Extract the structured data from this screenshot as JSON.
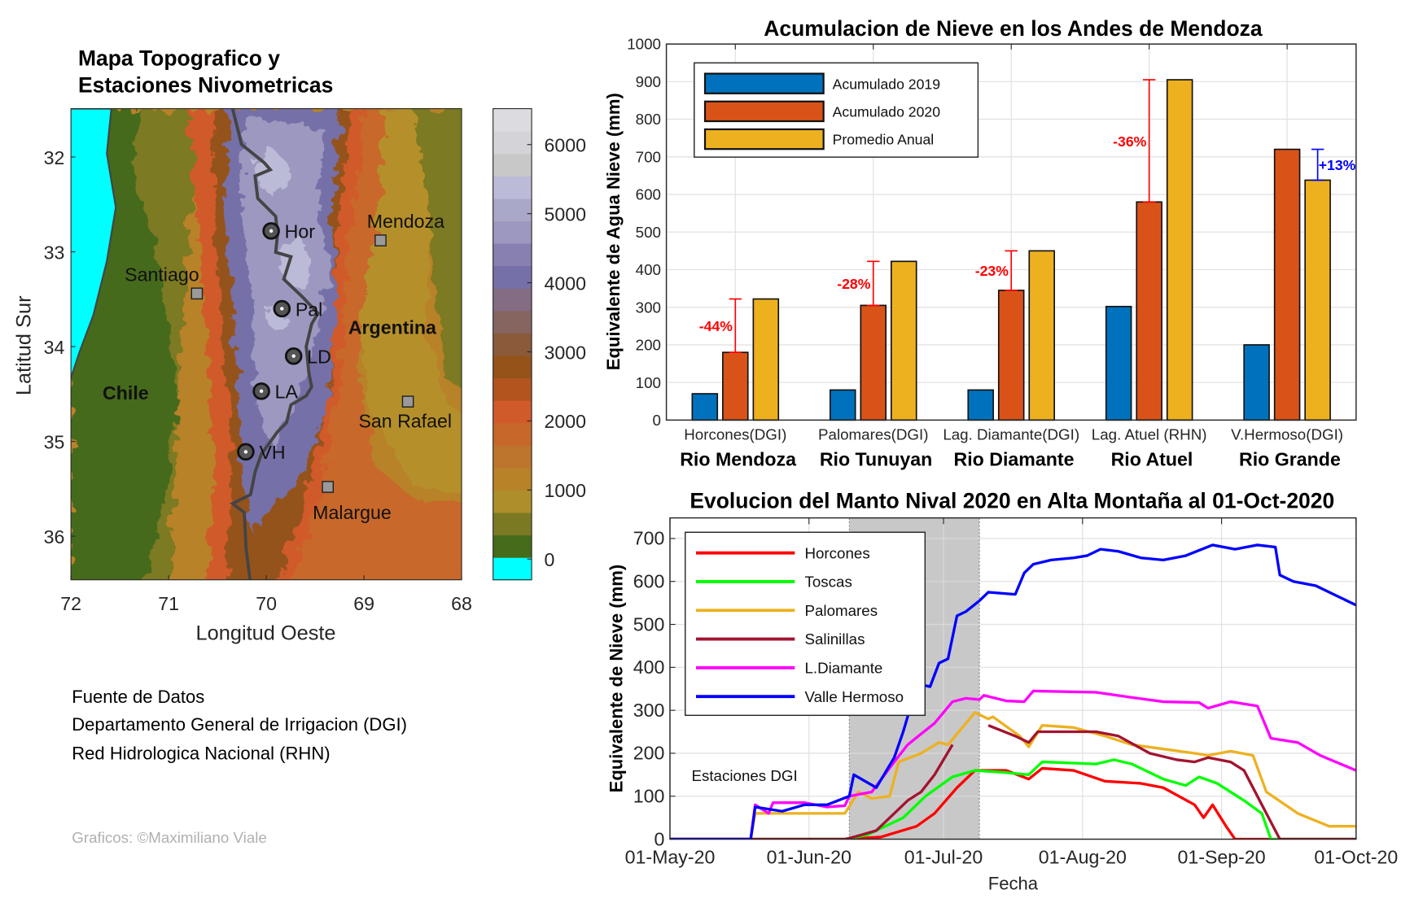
{
  "map": {
    "title_line1": "Mapa Topografico y",
    "title_line2": "Estaciones Nivometricas",
    "xlabel": "Longitud Oeste",
    "ylabel": "Latitud Sur",
    "xticks": [
      "72",
      "71",
      "70",
      "69",
      "68"
    ],
    "yticks": [
      "32",
      "33",
      "34",
      "35",
      "36"
    ],
    "lon_range": [
      72,
      68
    ],
    "lat_range": [
      31.49,
      36.46
    ],
    "ocean_color": "#00ffff",
    "border_color": "#444444",
    "stations": [
      {
        "label": "Hor",
        "lon": 69.95,
        "lat": 32.78
      },
      {
        "label": "Pal",
        "lon": 69.84,
        "lat": 33.6
      },
      {
        "label": "LD",
        "lon": 69.72,
        "lat": 34.1
      },
      {
        "label": "LA",
        "lon": 70.05,
        "lat": 34.47
      },
      {
        "label": "VH",
        "lon": 70.21,
        "lat": 35.11
      }
    ],
    "cities": [
      {
        "label": "Mendoza",
        "lon": 68.83,
        "lat": 32.88
      },
      {
        "label": "Santiago",
        "lon": 70.71,
        "lat": 33.44
      },
      {
        "label": "San Rafael",
        "lon": 68.55,
        "lat": 34.58
      },
      {
        "label": "Malargue",
        "lon": 69.37,
        "lat": 35.48
      }
    ],
    "countries": [
      {
        "label": "Chile",
        "lon": 71.44,
        "lat": 34.49
      },
      {
        "label": "Argentina",
        "lon": 68.71,
        "lat": 33.8
      }
    ]
  },
  "colorbar": {
    "ticks": [
      "0",
      "1000",
      "2000",
      "3000",
      "4000",
      "5000",
      "6000"
    ],
    "range": [
      -300,
      6520
    ],
    "colors": [
      "#00ffff",
      "#456b1b",
      "#7b7a22",
      "#ad8e2a",
      "#b88228",
      "#bd742c",
      "#c8672a",
      "#d05a2a",
      "#b3541f",
      "#95531a",
      "#8a5a3a",
      "#866460",
      "#846c84",
      "#7670a8",
      "#8880b0",
      "#9c98c0",
      "#aaa8c8",
      "#bbbbd8",
      "#c8c8c8",
      "#d4d4d8",
      "#dcdce0"
    ]
  },
  "sources": {
    "lines": [
      "Fuente de Datos",
      "Departamento General de Irrigacion (DGI)",
      "Red Hidrologica Nacional (RHN)"
    ],
    "credit": "Graficos: ©Maximiliano Viale"
  },
  "chart_data": [
    {
      "type": "bar",
      "title": "Acumulacion de Nieve en los Andes de Mendoza",
      "xlabel": "",
      "ylabel": "Equivalente de Agua Nieve (mm)",
      "ylim": [
        0,
        1000
      ],
      "yticks": [
        "0",
        "100",
        "200",
        "300",
        "400",
        "500",
        "600",
        "700",
        "800",
        "900",
        "1000"
      ],
      "grid": true,
      "legend_position": "top-left",
      "categories": [
        "Horcones(DGI)",
        "Palomares(DGI)",
        "Lag. Diamante(DGI)",
        "Lag. Atuel (RHN)",
        "V.Hermoso(DGI)"
      ],
      "groups": [
        "Rio Mendoza",
        "Rio Tunuyan",
        "Rio Diamante",
        "Rio Atuel",
        "Rio Grande"
      ],
      "series": [
        {
          "name": "Acumulado 2019",
          "color": "#0072bd",
          "values": [
            70,
            80,
            80,
            302,
            200
          ]
        },
        {
          "name": "Acumulado 2020",
          "color": "#d95319",
          "values": [
            180,
            305,
            345,
            580,
            720
          ]
        },
        {
          "name": "Promedio Anual",
          "color": "#edb120",
          "values": [
            322,
            422,
            450,
            905,
            638
          ]
        }
      ],
      "annotations": [
        {
          "category": 0,
          "text": "-44%",
          "color": "#ff0000",
          "from": 180,
          "to": 322,
          "series": 1
        },
        {
          "category": 1,
          "text": "-28%",
          "color": "#ff0000",
          "from": 305,
          "to": 422,
          "series": 1
        },
        {
          "category": 2,
          "text": "-23%",
          "color": "#ff0000",
          "from": 345,
          "to": 450,
          "series": 1
        },
        {
          "category": 3,
          "text": "-36%",
          "color": "#ff0000",
          "from": 580,
          "to": 905,
          "series": 1
        },
        {
          "category": 4,
          "text": "+13%",
          "color": "#0000ff",
          "from": 638,
          "to": 720,
          "series": 2
        }
      ]
    },
    {
      "type": "line",
      "title": "Evolucion del Manto Nival 2020 en Alta Montaña al 01-Oct-2020",
      "xlabel": "Fecha",
      "ylabel": "Equivalente de Nieve (mm)",
      "xlim": [
        "2020-05-01",
        "2020-10-01"
      ],
      "ylim": [
        0,
        748
      ],
      "xticks": [
        {
          "date": "2020-05-01",
          "label": "01-May-20"
        },
        {
          "date": "2020-06-01",
          "label": "01-Jun-20"
        },
        {
          "date": "2020-07-01",
          "label": "01-Jul-20"
        },
        {
          "date": "2020-08-01",
          "label": "01-Aug-20"
        },
        {
          "date": "2020-09-01",
          "label": "01-Sep-20"
        },
        {
          "date": "2020-10-01",
          "label": "01-Oct-20"
        }
      ],
      "yticks": [
        "0",
        "100",
        "200",
        "300",
        "400",
        "500",
        "600",
        "700"
      ],
      "grid": true,
      "legend_position": "top-left",
      "shaded_period": [
        "2020-06-10",
        "2020-07-09"
      ],
      "annotation": "Estaciones DGI",
      "series": [
        {
          "name": "Horcones",
          "color": "#ff0000",
          "points": [
            [
              "2020-05-01",
              0
            ],
            [
              "2020-06-09",
              0
            ],
            [
              "2020-06-17",
              5
            ],
            [
              "2020-06-25",
              30
            ],
            [
              "2020-06-29",
              60
            ],
            [
              "2020-07-04",
              120
            ],
            [
              "2020-07-08",
              160
            ],
            [
              "2020-07-15",
              160
            ],
            [
              "2020-07-20",
              140
            ],
            [
              "2020-07-23",
              165
            ],
            [
              "2020-07-30",
              160
            ],
            [
              "2020-08-06",
              135
            ],
            [
              "2020-08-14",
              130
            ],
            [
              "2020-08-19",
              120
            ],
            [
              "2020-08-26",
              80
            ],
            [
              "2020-08-28",
              50
            ],
            [
              "2020-08-30",
              80
            ],
            [
              "2020-09-02",
              30
            ],
            [
              "2020-09-04",
              0
            ],
            [
              "2020-10-01",
              0
            ]
          ]
        },
        {
          "name": "Toscas",
          "color": "#00ff00",
          "points": [
            [
              "2020-05-01",
              0
            ],
            [
              "2020-06-09",
              0
            ],
            [
              "2020-06-14",
              10
            ],
            [
              "2020-06-22",
              50
            ],
            [
              "2020-06-27",
              100
            ],
            [
              "2020-07-03",
              145
            ],
            [
              "2020-07-08",
              160
            ],
            [
              "2020-07-15",
              155
            ],
            [
              "2020-07-20",
              150
            ],
            [
              "2020-07-23",
              180
            ],
            [
              "2020-08-04",
              175
            ],
            [
              "2020-08-08",
              185
            ],
            [
              "2020-08-12",
              175
            ],
            [
              "2020-08-19",
              140
            ],
            [
              "2020-08-24",
              125
            ],
            [
              "2020-08-27",
              145
            ],
            [
              "2020-08-31",
              130
            ],
            [
              "2020-09-06",
              90
            ],
            [
              "2020-09-10",
              60
            ],
            [
              "2020-09-12",
              0
            ],
            [
              "2020-10-01",
              0
            ]
          ]
        },
        {
          "name": "Palomares",
          "color": "#edb120",
          "points": [
            [
              "2020-05-01",
              0
            ],
            [
              "2020-05-19",
              0
            ],
            [
              "2020-05-20",
              60
            ],
            [
              "2020-06-09",
              60
            ],
            [
              "2020-06-12",
              110
            ],
            [
              "2020-06-15",
              95
            ],
            [
              "2020-06-19",
              100
            ],
            [
              "2020-06-21",
              180
            ],
            [
              "2020-06-26",
              200
            ],
            [
              "2020-06-30",
              225
            ],
            [
              "2020-07-02",
              220
            ],
            [
              "2020-07-08",
              295
            ],
            [
              "2020-07-11",
              280
            ],
            [
              "2020-07-12",
              285
            ],
            [
              "2020-07-18",
              240
            ],
            [
              "2020-07-20",
              215
            ],
            [
              "2020-07-23",
              265
            ],
            [
              "2020-07-30",
              260
            ],
            [
              "2020-08-06",
              240
            ],
            [
              "2020-08-12",
              220
            ],
            [
              "2020-08-19",
              210
            ],
            [
              "2020-08-26",
              200
            ],
            [
              "2020-08-29",
              195
            ],
            [
              "2020-09-03",
              205
            ],
            [
              "2020-09-08",
              195
            ],
            [
              "2020-09-11",
              110
            ],
            [
              "2020-09-18",
              60
            ],
            [
              "2020-09-25",
              30
            ],
            [
              "2020-10-01",
              30
            ]
          ]
        },
        {
          "name": "Salinillas",
          "color": "#a2142f",
          "points": [
            [
              "2020-05-01",
              0
            ],
            [
              "2020-06-09",
              0
            ],
            [
              "2020-06-11",
              5
            ],
            [
              "2020-06-16",
              20
            ],
            [
              "2020-06-20",
              60
            ],
            [
              "2020-06-23",
              90
            ],
            [
              "2020-06-26",
              110
            ],
            [
              "2020-06-29",
              150
            ],
            [
              "2020-07-03",
              220
            ],
            [
              "2020-07-07",
              null
            ],
            [
              "2020-07-11",
              265
            ],
            [
              "2020-07-17",
              240
            ],
            [
              "2020-07-20",
              225
            ],
            [
              "2020-07-22",
              250
            ],
            [
              "2020-08-04",
              250
            ],
            [
              "2020-08-09",
              240
            ],
            [
              "2020-08-16",
              200
            ],
            [
              "2020-08-22",
              185
            ],
            [
              "2020-08-26",
              180
            ],
            [
              "2020-08-29",
              190
            ],
            [
              "2020-09-03",
              180
            ],
            [
              "2020-09-06",
              160
            ],
            [
              "2020-09-10",
              80
            ],
            [
              "2020-09-14",
              0
            ],
            [
              "2020-10-01",
              0
            ]
          ]
        },
        {
          "name": "L.Diamante",
          "color": "#ff00ff",
          "points": [
            [
              "2020-05-01",
              0
            ],
            [
              "2020-05-19",
              0
            ],
            [
              "2020-05-20",
              80
            ],
            [
              "2020-05-23",
              60
            ],
            [
              "2020-05-24",
              85
            ],
            [
              "2020-05-31",
              85
            ],
            [
              "2020-06-05",
              75
            ],
            [
              "2020-06-09",
              78
            ],
            [
              "2020-06-10",
              100
            ],
            [
              "2020-06-15",
              110
            ],
            [
              "2020-06-20",
              180
            ],
            [
              "2020-06-23",
              220
            ],
            [
              "2020-06-26",
              245
            ],
            [
              "2020-06-29",
              270
            ],
            [
              "2020-07-03",
              320
            ],
            [
              "2020-07-06",
              328
            ],
            [
              "2020-07-09",
              325
            ],
            [
              "2020-07-10",
              335
            ],
            [
              "2020-07-15",
              322
            ],
            [
              "2020-07-19",
              320
            ],
            [
              "2020-07-21",
              345
            ],
            [
              "2020-08-04",
              342
            ],
            [
              "2020-08-12",
              330
            ],
            [
              "2020-08-19",
              320
            ],
            [
              "2020-08-27",
              318
            ],
            [
              "2020-08-29",
              305
            ],
            [
              "2020-09-03",
              320
            ],
            [
              "2020-09-09",
              310
            ],
            [
              "2020-09-12",
              235
            ],
            [
              "2020-09-18",
              225
            ],
            [
              "2020-09-23",
              195
            ],
            [
              "2020-10-01",
              160
            ]
          ]
        },
        {
          "name": "Valle Hermoso",
          "color": "#0000ff",
          "points": [
            [
              "2020-05-01",
              0
            ],
            [
              "2020-05-19",
              0
            ],
            [
              "2020-05-20",
              75
            ],
            [
              "2020-05-26",
              65
            ],
            [
              "2020-05-31",
              80
            ],
            [
              "2020-06-05",
              80
            ],
            [
              "2020-06-10",
              100
            ],
            [
              "2020-06-11",
              150
            ],
            [
              "2020-06-16",
              120
            ],
            [
              "2020-06-20",
              190
            ],
            [
              "2020-06-22",
              250
            ],
            [
              "2020-06-24",
              320
            ],
            [
              "2020-06-26",
              360
            ],
            [
              "2020-06-28",
              355
            ],
            [
              "2020-06-30",
              410
            ],
            [
              "2020-07-02",
              420
            ],
            [
              "2020-07-04",
              520
            ],
            [
              "2020-07-06",
              530
            ],
            [
              "2020-07-09",
              555
            ],
            [
              "2020-07-11",
              575
            ],
            [
              "2020-07-17",
              570
            ],
            [
              "2020-07-19",
              620
            ],
            [
              "2020-07-21",
              640
            ],
            [
              "2020-07-25",
              650
            ],
            [
              "2020-07-30",
              655
            ],
            [
              "2020-08-02",
              660
            ],
            [
              "2020-08-05",
              675
            ],
            [
              "2020-08-09",
              670
            ],
            [
              "2020-08-14",
              655
            ],
            [
              "2020-08-19",
              650
            ],
            [
              "2020-08-24",
              660
            ],
            [
              "2020-08-30",
              685
            ],
            [
              "2020-09-04",
              675
            ],
            [
              "2020-09-09",
              685
            ],
            [
              "2020-09-13",
              680
            ],
            [
              "2020-09-14",
              615
            ],
            [
              "2020-09-17",
              600
            ],
            [
              "2020-09-22",
              590
            ],
            [
              "2020-09-26",
              570
            ],
            [
              "2020-10-01",
              545
            ]
          ]
        }
      ]
    }
  ]
}
